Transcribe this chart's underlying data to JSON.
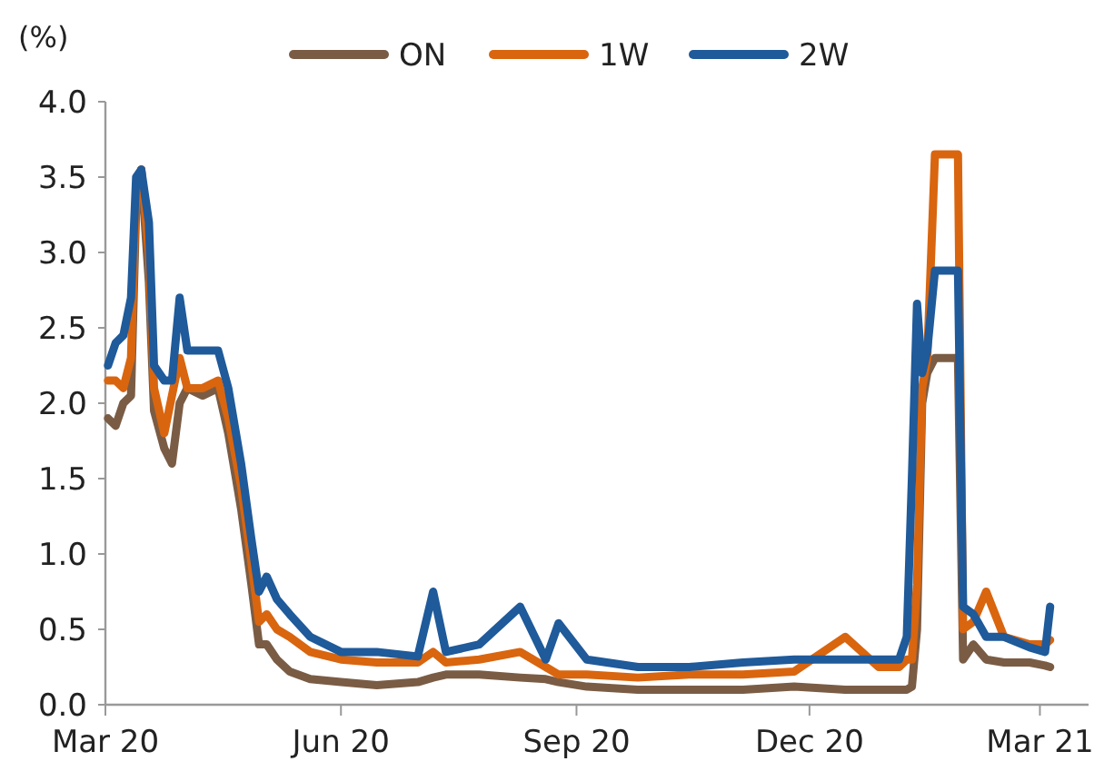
{
  "chart_data": {
    "type": "line",
    "ylabel": "(%)",
    "x": [
      "2020-03-02",
      "2020-03-05",
      "2020-03-08",
      "2020-03-11",
      "2020-03-13",
      "2020-03-15",
      "2020-03-18",
      "2020-03-20",
      "2020-03-24",
      "2020-03-27",
      "2020-03-30",
      "2020-04-02",
      "2020-04-08",
      "2020-04-14",
      "2020-04-18",
      "2020-04-23",
      "2020-04-27",
      "2020-04-30",
      "2020-05-03",
      "2020-05-07",
      "2020-05-12",
      "2020-05-20",
      "2020-06-01",
      "2020-06-15",
      "2020-07-01",
      "2020-07-07",
      "2020-07-12",
      "2020-07-25",
      "2020-08-10",
      "2020-08-20",
      "2020-08-25",
      "2020-09-05",
      "2020-09-25",
      "2020-10-15",
      "2020-11-05",
      "2020-11-25",
      "2020-12-15",
      "2020-12-28",
      "2021-01-05",
      "2021-01-08",
      "2021-01-10",
      "2021-01-12",
      "2021-01-14",
      "2021-01-16",
      "2021-01-19",
      "2021-01-25",
      "2021-01-28",
      "2021-01-30",
      "2021-02-03",
      "2021-02-08",
      "2021-02-15",
      "2021-02-25",
      "2021-03-03",
      "2021-03-05"
    ],
    "series": [
      {
        "name": "ON",
        "color": "#7a5c45",
        "values": [
          1.9,
          1.85,
          2.0,
          2.05,
          3.3,
          3.55,
          2.8,
          1.95,
          1.7,
          1.6,
          2.0,
          2.1,
          2.05,
          2.1,
          1.8,
          1.3,
          0.8,
          0.4,
          0.4,
          0.3,
          0.22,
          0.17,
          0.15,
          0.13,
          0.15,
          0.18,
          0.2,
          0.2,
          0.18,
          0.17,
          0.15,
          0.12,
          0.1,
          0.1,
          0.1,
          0.12,
          0.1,
          0.1,
          0.1,
          0.1,
          0.12,
          0.5,
          2.0,
          2.2,
          2.3,
          2.3,
          2.3,
          0.3,
          0.4,
          0.3,
          0.28,
          0.28,
          0.26,
          0.25
        ]
      },
      {
        "name": "1W",
        "color": "#d9650f",
        "values": [
          2.15,
          2.15,
          2.1,
          2.3,
          3.4,
          3.55,
          3.0,
          2.1,
          1.8,
          2.05,
          2.3,
          2.1,
          2.1,
          2.15,
          1.9,
          1.45,
          0.95,
          0.55,
          0.6,
          0.5,
          0.45,
          0.35,
          0.3,
          0.28,
          0.28,
          0.35,
          0.28,
          0.3,
          0.35,
          0.25,
          0.2,
          0.2,
          0.18,
          0.2,
          0.2,
          0.22,
          0.45,
          0.25,
          0.25,
          0.3,
          0.3,
          0.8,
          2.1,
          2.3,
          3.65,
          3.65,
          3.65,
          0.5,
          0.55,
          0.75,
          0.45,
          0.4,
          0.4,
          0.43
        ]
      },
      {
        "name": "2W",
        "color": "#1f5a9a",
        "values": [
          2.25,
          2.4,
          2.45,
          2.7,
          3.5,
          3.55,
          3.2,
          2.25,
          2.15,
          2.15,
          2.7,
          2.35,
          2.35,
          2.35,
          2.1,
          1.6,
          1.1,
          0.75,
          0.85,
          0.7,
          0.6,
          0.45,
          0.35,
          0.35,
          0.32,
          0.75,
          0.35,
          0.4,
          0.65,
          0.3,
          0.54,
          0.3,
          0.25,
          0.25,
          0.28,
          0.3,
          0.3,
          0.3,
          0.3,
          0.45,
          1.5,
          2.66,
          2.2,
          2.35,
          2.88,
          2.88,
          2.88,
          0.65,
          0.6,
          0.45,
          0.45,
          0.38,
          0.35,
          0.65
        ]
      }
    ],
    "xlim": [
      "2020-03-01",
      "2021-03-20"
    ],
    "xticks": [
      {
        "value": "2020-03-01",
        "label": "Mar 20"
      },
      {
        "value": "2020-06-01",
        "label": "Jun 20"
      },
      {
        "value": "2020-09-01",
        "label": "Sep 20"
      },
      {
        "value": "2020-12-01",
        "label": "Dec 20"
      },
      {
        "value": "2021-03-01",
        "label": "Mar 21"
      }
    ],
    "ylim": [
      0,
      4
    ],
    "yticks": [
      {
        "value": 0,
        "label": "0.0"
      },
      {
        "value": 0.5,
        "label": "0.5"
      },
      {
        "value": 1,
        "label": "1.0"
      },
      {
        "value": 1.5,
        "label": "1.5"
      },
      {
        "value": 2,
        "label": "2.0"
      },
      {
        "value": 2.5,
        "label": "2.5"
      },
      {
        "value": 3,
        "label": "3.0"
      },
      {
        "value": 3.5,
        "label": "3.5"
      },
      {
        "value": 4,
        "label": "4.0"
      }
    ],
    "legend": "top",
    "grid": false,
    "line_style": "solid",
    "marker": "none"
  }
}
